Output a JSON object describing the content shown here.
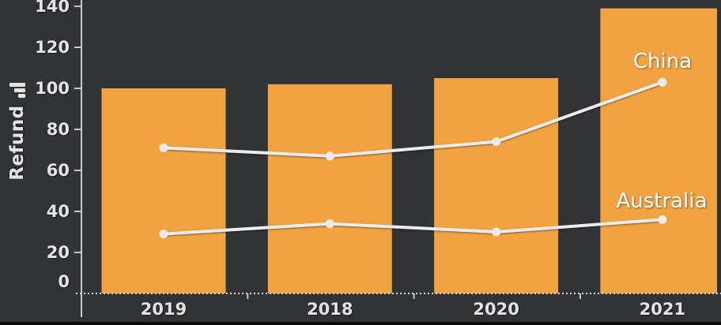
{
  "chart_data": {
    "type": "combo-bar-line",
    "categories": [
      "2019",
      "2018",
      "2020",
      "2021"
    ],
    "bar_series": {
      "name": "Refund",
      "values": [
        100,
        102,
        105,
        139
      ],
      "color": "#F1A342"
    },
    "line_series": [
      {
        "name": "China",
        "values": [
          71,
          67,
          74,
          103
        ]
      },
      {
        "name": "Australia",
        "values": [
          29,
          34,
          30,
          36
        ]
      }
    ],
    "ylabel": "Refund",
    "yticks": [
      0,
      20,
      40,
      60,
      80,
      100,
      120,
      140
    ],
    "ylim": [
      0,
      143
    ],
    "grid": false,
    "legend_position": "inline-right-of-lines",
    "colors": {
      "background": "#323335",
      "bar": "#F1A342",
      "line": "#ECECEC",
      "axis": "#C9C9C9",
      "text": "#E3E3E3",
      "series_label": "#FFFFFF",
      "bottom_strip": "#0B0B0B"
    },
    "icons": {
      "y_axis_icon": "bar-chart-icon"
    }
  }
}
